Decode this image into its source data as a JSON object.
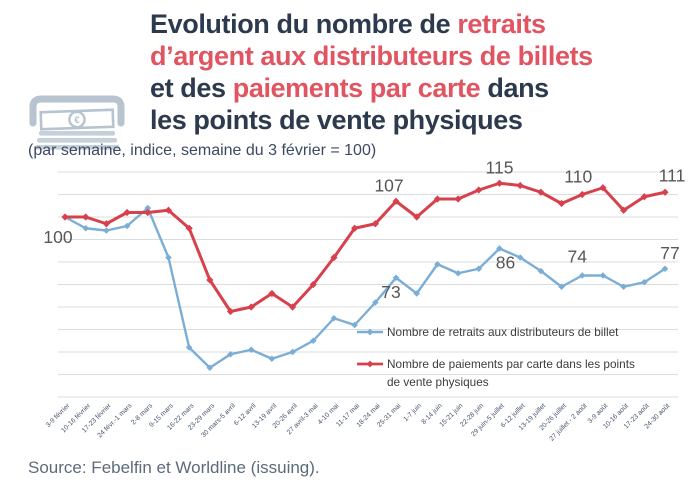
{
  "header": {
    "title_lines": [
      {
        "segments": [
          {
            "text": "Evolution du nombre de ",
            "color": "#2d3a4e"
          },
          {
            "text": "retraits",
            "color": "#e05561"
          }
        ]
      },
      {
        "segments": [
          {
            "text": "d’argent aux distributeurs de billets",
            "color": "#e05561"
          }
        ]
      },
      {
        "segments": [
          {
            "text": "et des ",
            "color": "#2d3a4e"
          },
          {
            "text": "paiements par carte",
            "color": "#e05561"
          },
          {
            "text": " dans",
            "color": "#2d3a4e"
          }
        ]
      },
      {
        "segments": [
          {
            "text": "les points de vente physiques",
            "color": "#2d3a4e"
          }
        ]
      }
    ],
    "subtitle": "(par semaine, indice, semaine du 3 février = 100)",
    "icon": "cash-withdrawal-euro-icon"
  },
  "chart_data": {
    "type": "line",
    "title": "",
    "xlabel": "",
    "ylabel": "",
    "ylim": [
      20,
      120
    ],
    "grid": true,
    "gridline_step": 10,
    "legend_position": "inside-bottom-right",
    "categories": [
      "3-9 février",
      "10-16 février",
      "17-23 février",
      "24 févr.-1 mars",
      "2-8 mars",
      "9-15 mars",
      "16-22 mars",
      "23-29 mars",
      "30 mars-5 avril",
      "6-12 avril",
      "13-19 avril",
      "20-26 avril",
      "27 avril-3 mai",
      "4-10 mai",
      "11-17 mai",
      "18-24 mai",
      "25-31 mai",
      "1-7 juin",
      "8-14 juin",
      "15-21 juin",
      "22-28 juin",
      "29 juin-5 juillet",
      "6-12 juillet",
      "13-19 juillet",
      "20-26 juillet",
      "27 juillet - 2 août",
      "3-9 août",
      "10-16 août",
      "17-23 août",
      "24-30 août"
    ],
    "series": [
      {
        "id": "retraits",
        "name": "Nombre de retraits aux distributeurs de billet",
        "legend_lines": [
          "Nombre de retraits aux distributeurs de billet"
        ],
        "color": "#7aaed6",
        "values": [
          100,
          95,
          94,
          96,
          104,
          82,
          42,
          33,
          39,
          41,
          37,
          40,
          45,
          55,
          52,
          62,
          73,
          66,
          79,
          75,
          77,
          86,
          82,
          76,
          69,
          74,
          74,
          69,
          71,
          77
        ]
      },
      {
        "id": "paiements",
        "name": "Nombre de paiements par carte dans les points de vente physiques",
        "legend_lines": [
          "Nombre de paiements par carte dans les points",
          "de vente physiques"
        ],
        "color": "#d6414d",
        "values": [
          100,
          100,
          97,
          102,
          102,
          103,
          95,
          72,
          58,
          60,
          66,
          60,
          70,
          82,
          95,
          97,
          107,
          100,
          108,
          108,
          112,
          115,
          114,
          111,
          106,
          110,
          113,
          103,
          109,
          111
        ]
      }
    ],
    "labeled_points": {
      "retraits": [
        0,
        16,
        21,
        25,
        29
      ],
      "paiements": [
        16,
        21,
        25,
        29
      ]
    }
  },
  "footer": {
    "source": "Source: Febelfin et Worldline (issuing)."
  },
  "colors": {
    "title_navy": "#2d3a4e",
    "title_red": "#e05561",
    "line_blue": "#7aaed6",
    "line_red": "#d6414d",
    "gridline": "#dcdcdc",
    "data_label": "#575757",
    "axis_label": "#44546a",
    "legend_text": "#3c3c3c",
    "icon_grey": "#b7c3cf"
  }
}
